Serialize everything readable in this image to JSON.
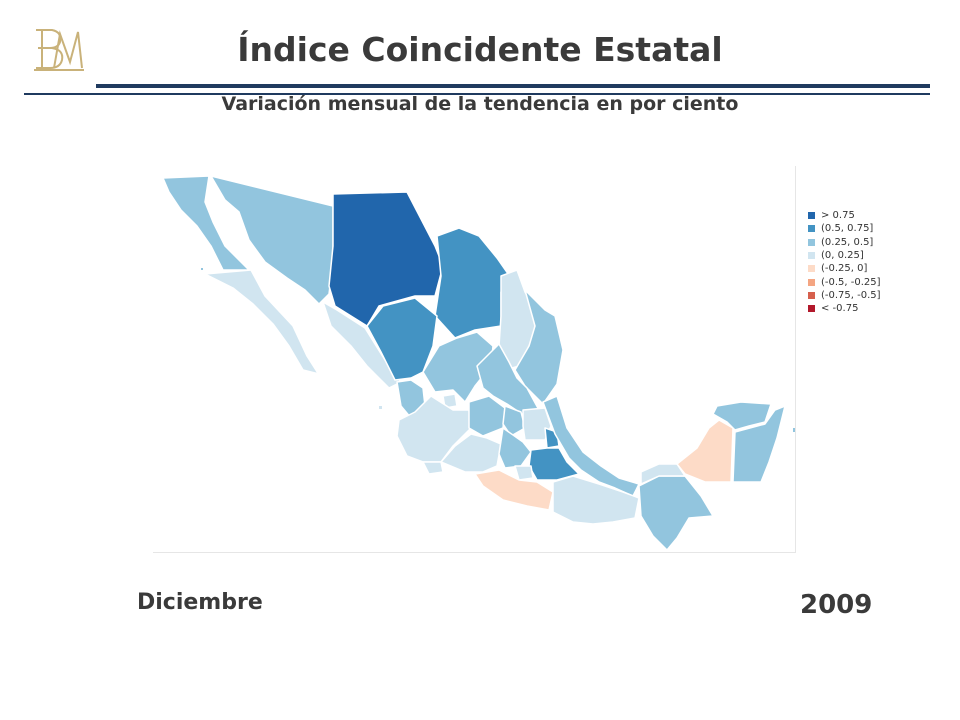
{
  "header": {
    "title": "Índice Coincidente Estatal",
    "subtitle": "Variación mensual de la tendencia en por ciento"
  },
  "logo": {
    "icon": "banxico-monogram-icon",
    "color": "#c9b27a"
  },
  "legend": {
    "items": [
      {
        "label": "> 0.75",
        "color": "#2166ac"
      },
      {
        "label": "(0.5, 0.75]",
        "color": "#4393c3"
      },
      {
        "label": "(0.25, 0.5]",
        "color": "#92c5de"
      },
      {
        "label": "(0, 0.25]",
        "color": "#d1e5f0"
      },
      {
        "label": "(-0.25, 0]",
        "color": "#fddbc7"
      },
      {
        "label": "(-0.5, -0.25]",
        "color": "#f4a582"
      },
      {
        "label": "(-0.75, -0.5]",
        "color": "#d6604d"
      },
      {
        "label": "< -0.75",
        "color": "#b2182b"
      }
    ]
  },
  "period": {
    "month": "Diciembre",
    "year": "2009"
  }
}
